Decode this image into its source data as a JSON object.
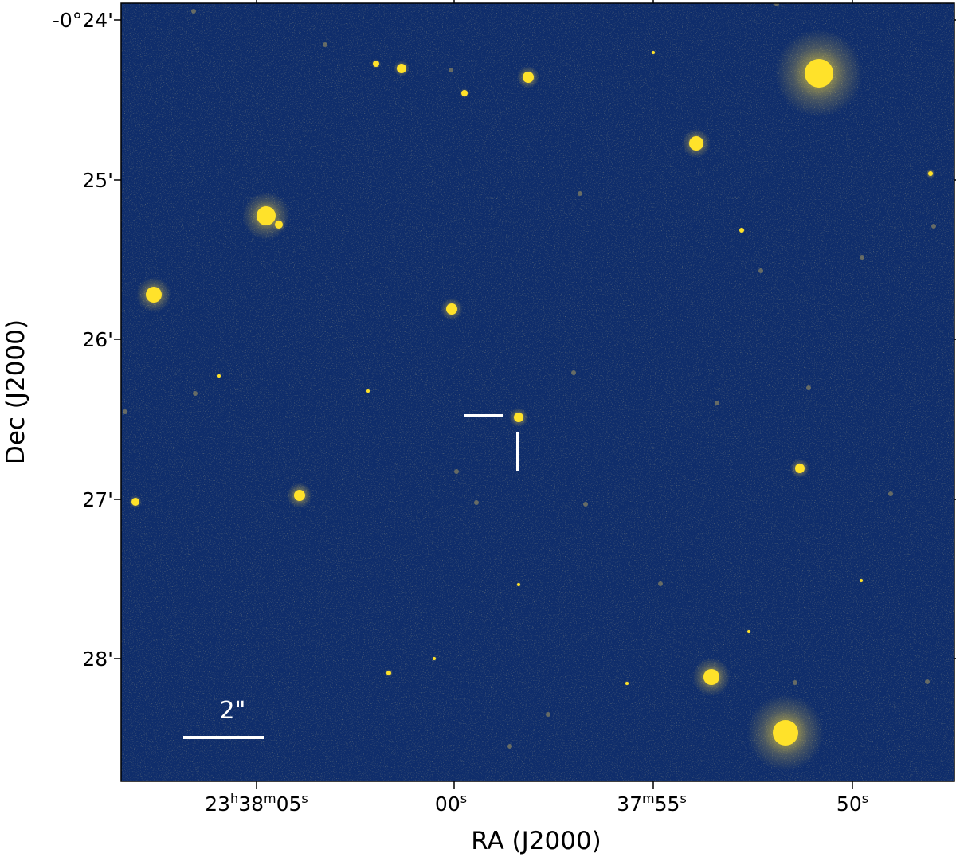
{
  "figure": {
    "xlabel": "RA (J2000)",
    "ylabel": "Dec (J2000)",
    "background_color": "#0f2d6b",
    "star_color": "#ffe22a",
    "marker_color": "#ffffff"
  },
  "xaxis": {
    "ticks": [
      {
        "main": "23",
        "h": "h",
        "mid": "38",
        "m": "m",
        "end": "05",
        "s": "s"
      },
      {
        "main": "",
        "h": "",
        "mid": "",
        "m": "",
        "end": "00",
        "s": "s"
      },
      {
        "main": "",
        "h": "",
        "mid": "37",
        "m": "m",
        "end": "55",
        "s": "s"
      },
      {
        "main": "",
        "h": "",
        "mid": "",
        "m": "",
        "end": "50",
        "s": "s"
      }
    ]
  },
  "yaxis": {
    "ticks": [
      "-0°24'",
      "25'",
      "26'",
      "27'",
      "28'"
    ]
  },
  "scalebar": {
    "label": "2\""
  },
  "target_marker": {
    "description_visible": false
  }
}
